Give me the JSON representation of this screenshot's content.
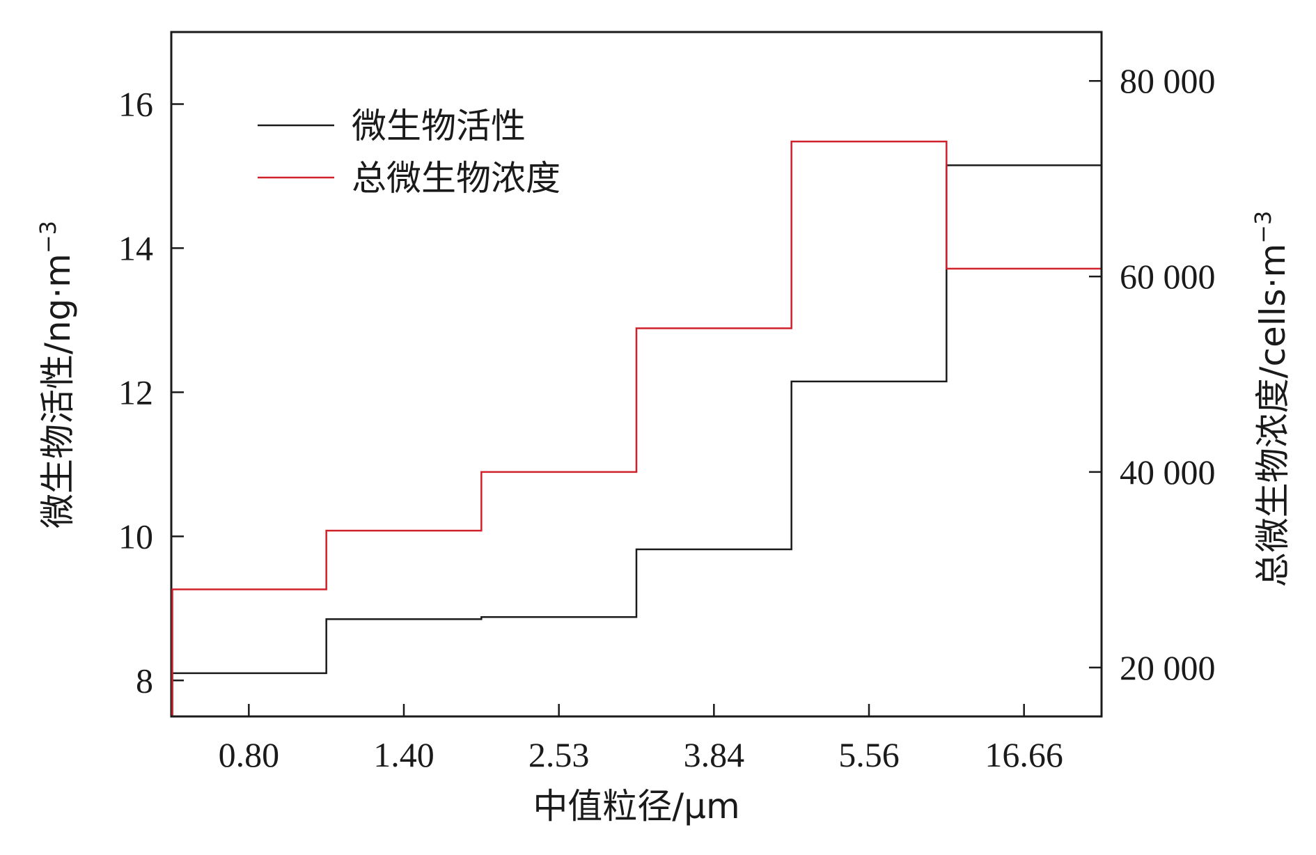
{
  "chart_data": {
    "type": "line",
    "step": true,
    "xlabel": "中值粒径/μm",
    "ylabel_left": "微生物活性/ng·m",
    "ylabel_left_exp": "−3",
    "ylabel_right": "总微生物浓度/cells·m",
    "ylabel_right_exp": "−3",
    "categories": [
      "0.80",
      "1.40",
      "2.53",
      "3.84",
      "5.56",
      "16.66"
    ],
    "yticks_left": [
      "8",
      "10",
      "12",
      "14",
      "16"
    ],
    "yticks_right": [
      "20 000",
      "40 000",
      "60 000",
      "80 000"
    ],
    "ylim_left": [
      7.5,
      17.0
    ],
    "ylim_right": [
      15000,
      85000
    ],
    "grid": false,
    "legend_position": "top-left",
    "series": [
      {
        "name": "微生物活性",
        "axis": "left",
        "color": "#1a1a1a",
        "values": [
          8.1,
          8.85,
          8.88,
          9.82,
          12.15,
          15.15
        ]
      },
      {
        "name": "总微生物浓度",
        "axis": "right",
        "color": "#d0212b",
        "values": [
          28000,
          34000,
          40000,
          54700,
          73800,
          60800
        ]
      }
    ]
  }
}
